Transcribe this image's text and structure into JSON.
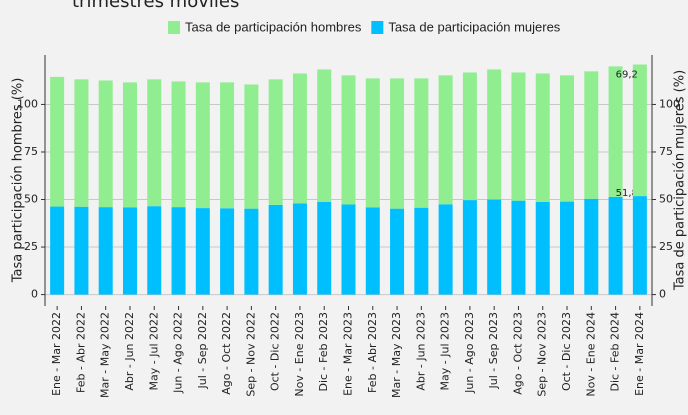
{
  "chart_data": {
    "type": "stacked_bar",
    "title": "trimestres móviles",
    "categories": [
      "Ene - Mar 2022",
      "Feb - Abr 2022",
      "Mar - May 2022",
      "Abr - Jun 2022",
      "May - Jul 2022",
      "Jun - Ago 2022",
      "Jul - Sep 2022",
      "Ago - Oct 2022",
      "Sep - Nov 2022",
      "Oct - Dic 2022",
      "Nov - Ene 2023",
      "Dic - Feb 2023",
      "Ene - Mar 2023",
      "Feb - Abr 2023",
      "Mar - May 2023",
      "Abr - Jun 2023",
      "May - Jul 2023",
      "Jun - Ago 2023",
      "Jul - Sep 2023",
      "Ago - Oct 2023",
      "Sep - Nov 2023",
      "Oct - Dic 2023",
      "Nov - Ene 2024",
      "Dic - Feb 2024",
      "Ene - Mar 2024"
    ],
    "series": [
      {
        "name": "Tasa de participación mujeres",
        "color": "#00bfff",
        "values": [
          46.3,
          46.2,
          46.0,
          45.8,
          46.5,
          46.0,
          45.5,
          45.4,
          45.2,
          47.2,
          48.0,
          48.8,
          47.4,
          45.9,
          45.2,
          45.7,
          47.5,
          49.7,
          50.0,
          49.4,
          48.7,
          48.9,
          50.4,
          51.4,
          51.8
        ],
        "value_labels": [
          null,
          null,
          null,
          null,
          null,
          null,
          null,
          null,
          null,
          null,
          null,
          null,
          null,
          null,
          null,
          null,
          null,
          null,
          null,
          null,
          null,
          null,
          null,
          null,
          "51,8"
        ]
      },
      {
        "name": "Tasa de participación hombres",
        "color": "#90ee90",
        "values": [
          68.2,
          67.0,
          66.6,
          65.8,
          66.7,
          66.1,
          66.1,
          66.2,
          65.3,
          66.0,
          68.3,
          69.6,
          67.9,
          67.8,
          68.5,
          68.0,
          67.8,
          67.1,
          68.4,
          67.4,
          67.6,
          66.4,
          67.0,
          68.6,
          69.2
        ],
        "value_labels": [
          null,
          null,
          null,
          null,
          null,
          null,
          null,
          null,
          null,
          null,
          null,
          null,
          null,
          null,
          null,
          null,
          null,
          null,
          null,
          null,
          null,
          null,
          null,
          null,
          "69,2"
        ]
      }
    ],
    "legend_order": [
      1,
      0
    ],
    "ylabel": "Tasa participación hombres (%)",
    "y2label": "Tasa de participación mujeres (%)",
    "ylim": [
      -6,
      126
    ],
    "yticks": [
      0,
      25,
      50,
      75,
      100
    ],
    "y2lim": [
      -6,
      126
    ],
    "y2ticks": [
      0,
      25,
      50,
      75,
      100
    ],
    "grid": true
  }
}
